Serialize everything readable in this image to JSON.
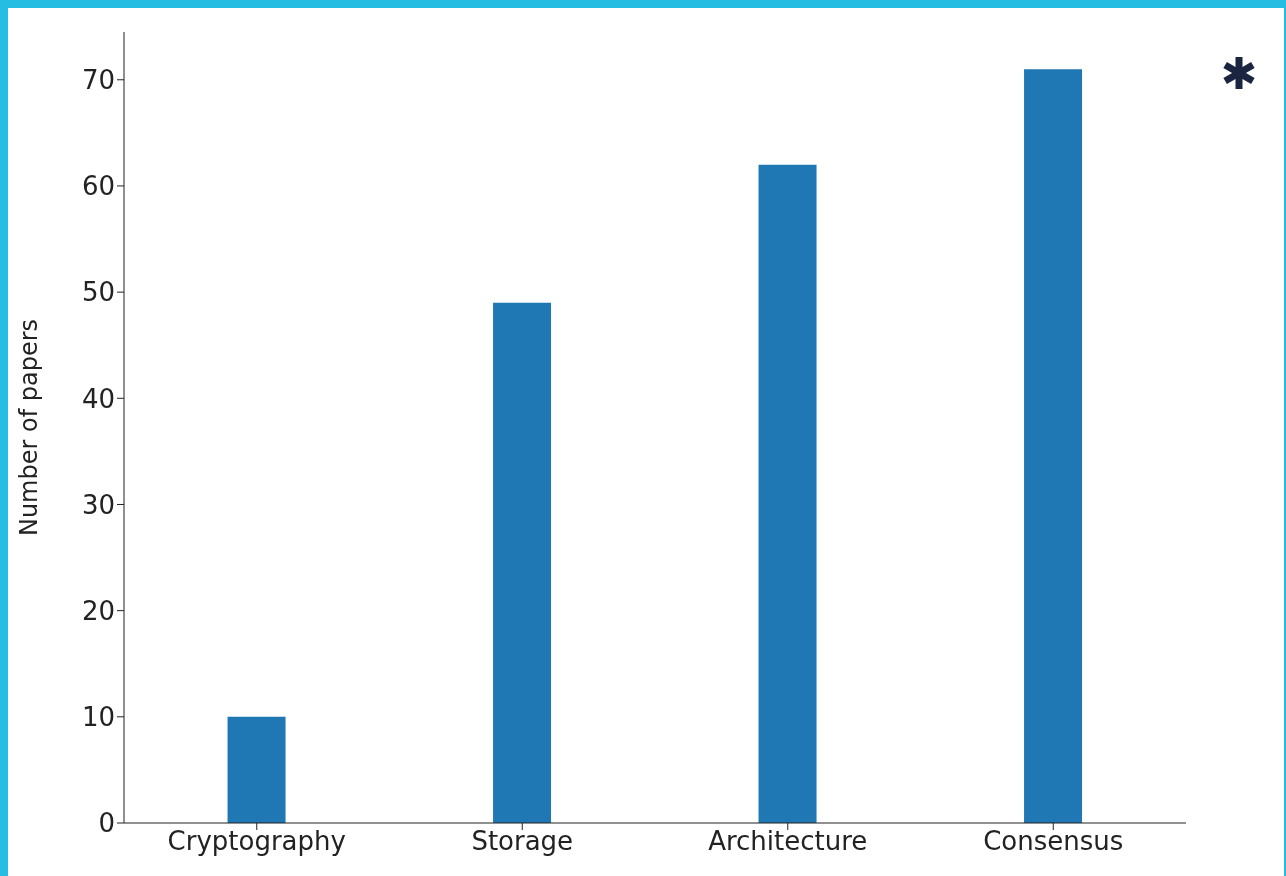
{
  "chart_data": {
    "type": "bar",
    "ylabel": "Number of papers",
    "categories": [
      "Cryptography",
      "Storage",
      "Architecture",
      "Consensus"
    ],
    "values": [
      10,
      49,
      62,
      71
    ],
    "color": "#1f77b4",
    "ylim": [
      0,
      74.5
    ],
    "yticks": [
      0,
      10,
      20,
      30,
      40,
      50,
      60,
      70
    ],
    "grid": false
  }
}
